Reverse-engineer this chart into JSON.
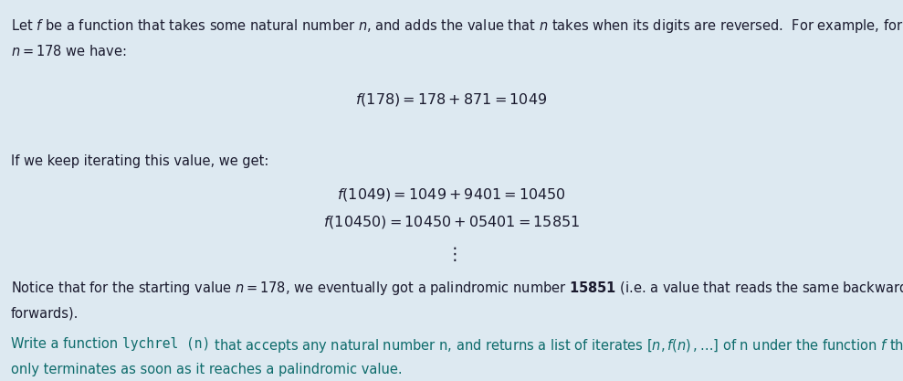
{
  "bg_color": "#dde9f1",
  "text_color": "#1a1a2e",
  "teal_color": "#0d6b6b",
  "fig_width": 9.89,
  "fig_height": 4.17,
  "dpi": 100,
  "body_fs": 10.5,
  "eq_fs": 11.5,
  "para1_line1": "Let $f$ be a function that takes some natural number $n$, and adds the value that $n$ takes when its digits are reversed.  For example, for",
  "para1_line2": "$n = 178$ we have:",
  "equation1": "$f(178) = 178 + 871 = 1049$",
  "para2": "If we keep iterating this value, we get:",
  "equation2a": "$f(1049) = 1049 + 9401 = 10450$",
  "equation2b": "$f(10450) = 10450 + 05401 = 15851$",
  "vdots": "$\\vdots$",
  "para3_line1_pre": "Notice that for the starting value $n = 178$, we eventually got a palindromic number $\\bf{15851}$ (i.e. a value that reads the same backward as",
  "para3_line2": "forwards).",
  "para4_line1_a": "Write a function ",
  "para4_lychrel": "lychrel (n)",
  "para4_line1_b": " that accepts any natural number n, and returns a list of iterates $[n, f(n)\\,, \\ldots]$ of n under the function $f$ that",
  "para4_line2": "only terminates as soon as it reaches a palindromic value."
}
